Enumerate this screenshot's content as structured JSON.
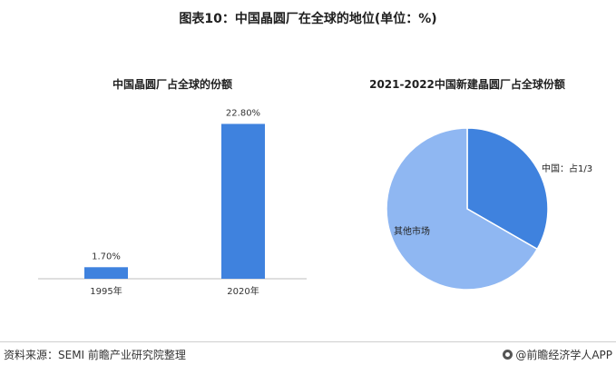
{
  "figure": {
    "title": "图表10：中国晶圆厂在全球的地位(单位：%)",
    "source": "资料来源：SEMI 前瞻产业研究院整理",
    "brand": "@前瞻经济学人APP"
  },
  "chart_data": [
    {
      "type": "bar",
      "title": "中国晶圆厂占全球的份额",
      "categories": [
        "1995年",
        "2020年"
      ],
      "values": [
        1.7,
        22.8
      ],
      "value_labels": [
        "1.70%",
        "22.80%"
      ],
      "unit": "%",
      "ylim": [
        0,
        25
      ],
      "grid": false,
      "color": "#3f82de"
    },
    {
      "type": "pie",
      "title": "2021-2022中国新建晶圆厂占全球份额",
      "labels": [
        "中国：占1/3",
        "其他市场"
      ],
      "values": [
        33.3,
        66.7
      ],
      "colors": [
        "#3f82de",
        "#8fb7f2"
      ]
    }
  ]
}
